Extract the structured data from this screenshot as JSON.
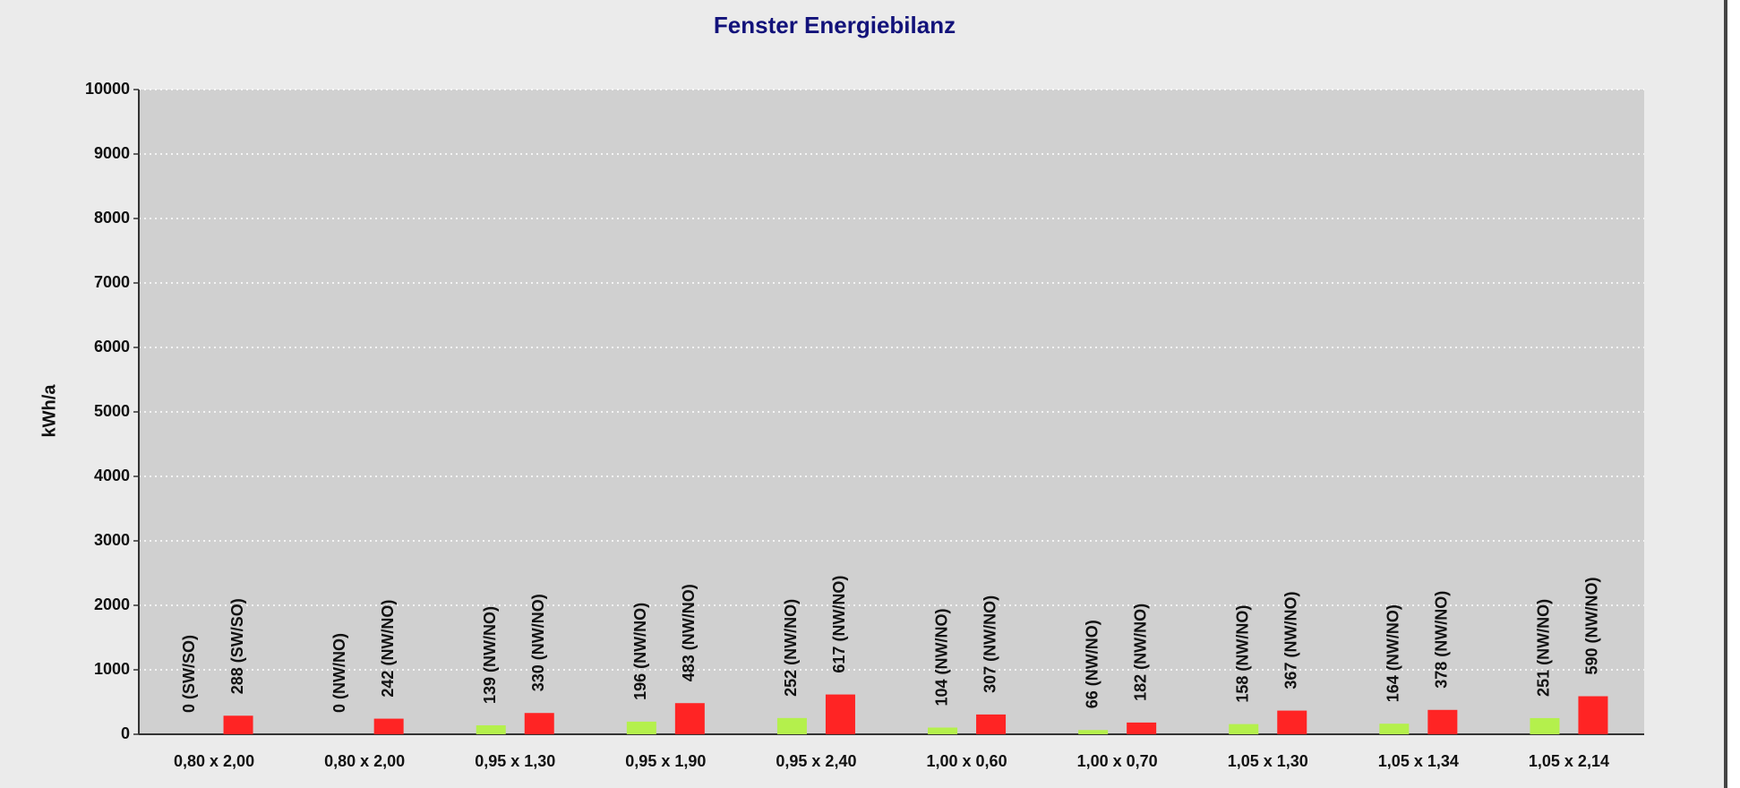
{
  "chart_data": {
    "type": "bar",
    "title": "Fenster Energiebilanz",
    "y_label": "kWh/a",
    "categories": [
      "0,80 x 2,00",
      "0,80 x 2,00",
      "0,95 x 1,30",
      "0,95 x 1,90",
      "0,95 x 2,40",
      "1,00 x 0,60",
      "1,00 x 0,70",
      "1,05 x 1,30",
      "1,05 x 1,34",
      "1,05 x 2,14"
    ],
    "series": [
      {
        "color": "#b4f04c",
        "values": [
          0,
          0,
          139,
          196,
          252,
          104,
          66,
          158,
          164,
          251
        ],
        "value_labels": [
          "0 (SW/SO)",
          "0 (NW/NO)",
          "139 (NW/NO)",
          "196 (NW/NO)",
          "252 (NW/NO)",
          "104 (NW/NO)",
          "66 (NW/NO)",
          "158 (NW/NO)",
          "164 (NW/NO)",
          "251 (NW/NO)"
        ]
      },
      {
        "color": "#ff2424",
        "values": [
          288,
          242,
          330,
          483,
          617,
          307,
          182,
          367,
          378,
          590
        ],
        "value_labels": [
          "288 (SW/SO)",
          "242 (NW/NO)",
          "330 (NW/NO)",
          "483 (NW/NO)",
          "617 (NW/NO)",
          "307 (NW/NO)",
          "182 (NW/NO)",
          "367 (NW/NO)",
          "378 (NW/NO)",
          "590 (NW/NO)"
        ]
      }
    ],
    "ylim": [
      0,
      10000
    ],
    "yticks": [
      0,
      1000,
      2000,
      3000,
      4000,
      5000,
      6000,
      7000,
      8000,
      9000,
      10000
    ],
    "grid": true
  }
}
